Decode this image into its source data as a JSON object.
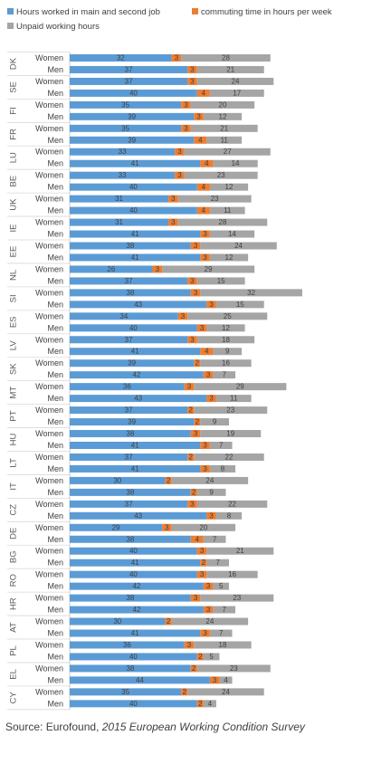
{
  "chart_data": {
    "type": "bar",
    "orientation": "horizontal",
    "stacked": true,
    "legend_position": "top-left",
    "grid": false,
    "series": [
      {
        "name": "Hours worked in main and second job",
        "color": "#5b9bd5"
      },
      {
        "name": "commuting time in hours per week",
        "color": "#ed7d31"
      },
      {
        "name": "Unpaid working hours",
        "color": "#a5a5a5"
      }
    ],
    "groups": [
      {
        "country": "DK",
        "rows": [
          {
            "label": "Women",
            "values": [
              32,
              3,
              28
            ]
          },
          {
            "label": "Men",
            "values": [
              37,
              3,
              21
            ]
          }
        ]
      },
      {
        "country": "SE",
        "rows": [
          {
            "label": "Women",
            "values": [
              37,
              3,
              24
            ]
          },
          {
            "label": "Men",
            "values": [
              40,
              4,
              17
            ]
          }
        ]
      },
      {
        "country": "FI",
        "rows": [
          {
            "label": "Women",
            "values": [
              35,
              3,
              20
            ]
          },
          {
            "label": "Men",
            "values": [
              39,
              3,
              12
            ]
          }
        ]
      },
      {
        "country": "FR",
        "rows": [
          {
            "label": "Women",
            "values": [
              35,
              3,
              21
            ]
          },
          {
            "label": "Men",
            "values": [
              39,
              4,
              11
            ]
          }
        ]
      },
      {
        "country": "LU",
        "rows": [
          {
            "label": "Women",
            "values": [
              33,
              3,
              27
            ]
          },
          {
            "label": "Men",
            "values": [
              41,
              4,
              14
            ]
          }
        ]
      },
      {
        "country": "BE",
        "rows": [
          {
            "label": "Women",
            "values": [
              33,
              3,
              23
            ]
          },
          {
            "label": "Men",
            "values": [
              40,
              4,
              12
            ]
          }
        ]
      },
      {
        "country": "UK",
        "rows": [
          {
            "label": "Women",
            "values": [
              31,
              3,
              23
            ]
          },
          {
            "label": "Men",
            "values": [
              40,
              4,
              11
            ]
          }
        ]
      },
      {
        "country": "IE",
        "rows": [
          {
            "label": "Women",
            "values": [
              31,
              3,
              28
            ]
          },
          {
            "label": "Men",
            "values": [
              41,
              3,
              14
            ]
          }
        ]
      },
      {
        "country": "EE",
        "rows": [
          {
            "label": "Women",
            "values": [
              38,
              3,
              24
            ]
          },
          {
            "label": "Men",
            "values": [
              41,
              3,
              12
            ]
          }
        ]
      },
      {
        "country": "NL",
        "rows": [
          {
            "label": "Women",
            "values": [
              26,
              3,
              29
            ]
          },
          {
            "label": "Men",
            "values": [
              37,
              3,
              15
            ]
          }
        ]
      },
      {
        "country": "SI",
        "rows": [
          {
            "label": "Women",
            "values": [
              38,
              3,
              32
            ]
          },
          {
            "label": "Men",
            "values": [
              43,
              3,
              15
            ]
          }
        ]
      },
      {
        "country": "ES",
        "rows": [
          {
            "label": "Women",
            "values": [
              34,
              3,
              25
            ]
          },
          {
            "label": "Men",
            "values": [
              40,
              3,
              12
            ]
          }
        ]
      },
      {
        "country": "LV",
        "rows": [
          {
            "label": "Women",
            "values": [
              37,
              3,
              18
            ]
          },
          {
            "label": "Men",
            "values": [
              41,
              4,
              9
            ]
          }
        ]
      },
      {
        "country": "SK",
        "rows": [
          {
            "label": "Women",
            "values": [
              39,
              2,
              16
            ]
          },
          {
            "label": "Men",
            "values": [
              42,
              3,
              7
            ]
          }
        ]
      },
      {
        "country": "MT",
        "rows": [
          {
            "label": "Women",
            "values": [
              36,
              3,
              29
            ]
          },
          {
            "label": "Men",
            "values": [
              43,
              3,
              11
            ]
          }
        ]
      },
      {
        "country": "PT",
        "rows": [
          {
            "label": "Women",
            "values": [
              37,
              2,
              23
            ]
          },
          {
            "label": "Men",
            "values": [
              39,
              2,
              9
            ]
          }
        ]
      },
      {
        "country": "HU",
        "rows": [
          {
            "label": "Women",
            "values": [
              38,
              3,
              19
            ]
          },
          {
            "label": "Men",
            "values": [
              41,
              3,
              7
            ]
          }
        ]
      },
      {
        "country": "LT",
        "rows": [
          {
            "label": "Women",
            "values": [
              37,
              2,
              22
            ]
          },
          {
            "label": "Men",
            "values": [
              41,
              3,
              8
            ]
          }
        ]
      },
      {
        "country": "IT",
        "rows": [
          {
            "label": "Women",
            "values": [
              30,
              2,
              24
            ]
          },
          {
            "label": "Men",
            "values": [
              38,
              2,
              9
            ]
          }
        ]
      },
      {
        "country": "CZ",
        "rows": [
          {
            "label": "Women",
            "values": [
              37,
              3,
              22
            ]
          },
          {
            "label": "Men",
            "values": [
              43,
              3,
              8
            ]
          }
        ]
      },
      {
        "country": "DE",
        "rows": [
          {
            "label": "Women",
            "values": [
              29,
              3,
              20
            ]
          },
          {
            "label": "Men",
            "values": [
              38,
              4,
              7
            ]
          }
        ]
      },
      {
        "country": "BG",
        "rows": [
          {
            "label": "Women",
            "values": [
              40,
              3,
              21
            ]
          },
          {
            "label": "Men",
            "values": [
              41,
              2,
              7
            ]
          }
        ]
      },
      {
        "country": "RO",
        "rows": [
          {
            "label": "Women",
            "values": [
              40,
              3,
              16
            ]
          },
          {
            "label": "Men",
            "values": [
              42,
              3,
              5
            ]
          }
        ]
      },
      {
        "country": "HR",
        "rows": [
          {
            "label": "Women",
            "values": [
              38,
              3,
              23
            ]
          },
          {
            "label": "Men",
            "values": [
              42,
              3,
              7
            ]
          }
        ]
      },
      {
        "country": "AT",
        "rows": [
          {
            "label": "Women",
            "values": [
              30,
              2,
              24
            ]
          },
          {
            "label": "Men",
            "values": [
              41,
              3,
              7
            ]
          }
        ]
      },
      {
        "country": "PL",
        "rows": [
          {
            "label": "Women",
            "values": [
              36,
              3,
              18
            ]
          },
          {
            "label": "Men",
            "values": [
              40,
              2,
              5
            ]
          }
        ]
      },
      {
        "country": "EL",
        "rows": [
          {
            "label": "Women",
            "values": [
              38,
              2,
              23
            ]
          },
          {
            "label": "Men",
            "values": [
              44,
              3,
              4
            ]
          }
        ]
      },
      {
        "country": "CY",
        "rows": [
          {
            "label": "Women",
            "values": [
              35,
              2,
              24
            ]
          },
          {
            "label": "Men",
            "values": [
              40,
              2,
              4
            ]
          }
        ]
      }
    ]
  },
  "source": {
    "label": "Source:",
    "text": " Eurofound, ",
    "title": "2015 European Working Condition Survey"
  }
}
